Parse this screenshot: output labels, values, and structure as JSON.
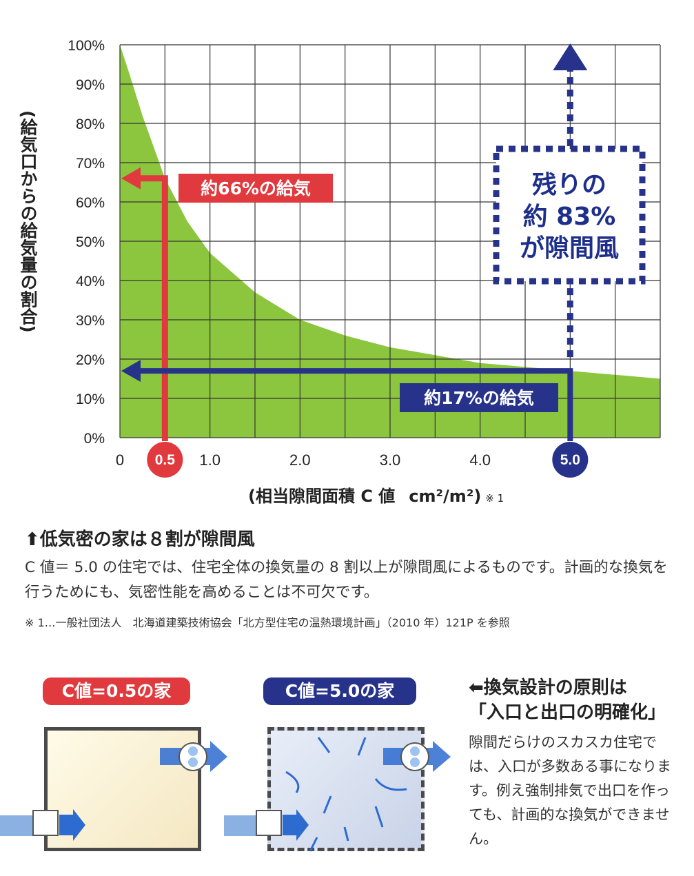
{
  "chart_data": {
    "type": "area",
    "x_ticks": [
      "0",
      "0.5",
      "1.0",
      "2.0",
      "3.0",
      "4.0",
      "5.0"
    ],
    "y_ticks": [
      "0%",
      "10%",
      "20%",
      "30%",
      "40%",
      "50%",
      "60%",
      "70%",
      "80%",
      "90%",
      "100%"
    ],
    "xlim": [
      0,
      6.0
    ],
    "ylim": [
      0,
      100
    ],
    "grid": true,
    "curve": {
      "x": [
        0,
        0.1,
        0.25,
        0.5,
        0.75,
        1.0,
        1.5,
        2.0,
        2.5,
        3.0,
        3.5,
        4.0,
        4.5,
        5.0,
        5.5,
        6.0
      ],
      "y": [
        100,
        93,
        82,
        66,
        55,
        47,
        37,
        30,
        26,
        23,
        21,
        19,
        18,
        17,
        16,
        15
      ]
    },
    "ylabel": "(給気口からの給気量の割合)",
    "xlabel": "(相当隙間面積 C 値",
    "xlabel_unit": "cm²/m²)",
    "xlabel_note": "※ 1",
    "annotations": {
      "red_value": "約66%の給気",
      "blue_value": "約17%の給気",
      "remaining": [
        "残りの",
        "約 83%",
        "が隙間風"
      ],
      "red_x": 0.5,
      "red_y": 66,
      "blue_x": 5.0,
      "blue_y": 17
    },
    "colors": {
      "fill": "#8cc63f",
      "red": "#e03a3e",
      "blue": "#27338a"
    }
  },
  "heading": "⬆低気密の家は８割が隙間風",
  "body": "C 値＝ 5.0 の住宅では、住宅全体の換気量の 8 割以上が隙間風によるものです。計画的な換気を行うためにも、気密性能を高めることは不可欠です。",
  "footnote": "※ 1…一般社団法人　北海道建築技術協会「北方型住宅の温熱環境計画」（2010 年）121P を参照",
  "house_a_label": "C値=0.5の家",
  "house_b_label": "C値=5.0の家",
  "principle_title_1": "⬅換気設計の原則は",
  "principle_title_2": "「入口と出口の明確化」",
  "principle_text": "隙間だらけのスカスカ住宅では、入口が多数ある事になります。例え強制排気で出口を作っても、計画的な換気ができません。"
}
